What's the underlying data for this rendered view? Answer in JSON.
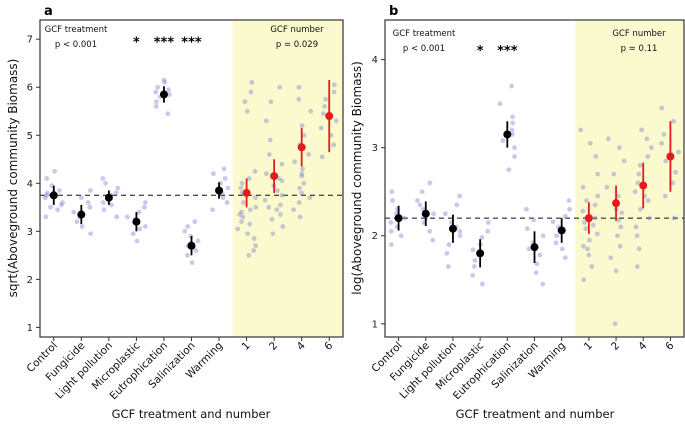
{
  "colors": {
    "treatment_mean": "#000000",
    "number_mean": "#e41a1c",
    "scatter": "#7f7fd0",
    "highlight_band": "#f8f8b4",
    "dashed_line": "#111111",
    "panel_border": "#333333"
  },
  "chart_data": [
    {
      "type": "scatter",
      "panel_label": "a",
      "ylabel": "sqrt(Aboveground community Biomass)",
      "xlabel": "GCF treatment and number",
      "ylim": [
        0.8,
        7.4
      ],
      "yticks": [
        1,
        2,
        3,
        4,
        5,
        6,
        7
      ],
      "categories": [
        "Control",
        "Fungicide",
        "Light pollution",
        "Microplastic",
        "Eutrophication",
        "Salinization",
        "Warming",
        "1",
        "2",
        "4",
        "6"
      ],
      "group_split_index": 7,
      "dashed_line_y": 3.75,
      "annotations": {
        "treatment": {
          "title": "GCF treatment",
          "p": "p < 0.001"
        },
        "number": {
          "title": "GCF number",
          "p": "p = 0.029"
        }
      },
      "stars": [
        {
          "category": "Microplastic",
          "label": "*"
        },
        {
          "category": "Eutrophication",
          "label": "***"
        },
        {
          "category": "Salinization",
          "label": "***"
        }
      ],
      "stars_y": 6.85,
      "means": [
        {
          "category": "Control",
          "mean": 3.75,
          "lo": 3.55,
          "hi": 3.95,
          "group": "treatment"
        },
        {
          "category": "Fungicide",
          "mean": 3.35,
          "lo": 3.15,
          "hi": 3.55,
          "group": "treatment"
        },
        {
          "category": "Light pollution",
          "mean": 3.7,
          "lo": 3.55,
          "hi": 3.85,
          "group": "treatment"
        },
        {
          "category": "Microplastic",
          "mean": 3.2,
          "lo": 3.0,
          "hi": 3.4,
          "group": "treatment"
        },
        {
          "category": "Eutrophication",
          "mean": 5.85,
          "lo": 5.68,
          "hi": 6.02,
          "group": "treatment"
        },
        {
          "category": "Salinization",
          "mean": 2.7,
          "lo": 2.5,
          "hi": 2.9,
          "group": "treatment"
        },
        {
          "category": "Warming",
          "mean": 3.85,
          "lo": 3.68,
          "hi": 4.02,
          "group": "treatment"
        },
        {
          "category": "1",
          "mean": 3.8,
          "lo": 3.5,
          "hi": 4.1,
          "group": "number"
        },
        {
          "category": "2",
          "mean": 4.15,
          "lo": 3.8,
          "hi": 4.5,
          "group": "number"
        },
        {
          "category": "4",
          "mean": 4.75,
          "lo": 4.35,
          "hi": 5.15,
          "group": "number"
        },
        {
          "category": "6",
          "mean": 5.4,
          "lo": 4.65,
          "hi": 6.15,
          "group": "number"
        }
      ],
      "scatter_points": [
        [
          3.3,
          3.45,
          3.55,
          3.6,
          3.7,
          3.75,
          3.8,
          3.85,
          3.95,
          4.1,
          4.25,
          3.5
        ],
        [
          2.95,
          3.1,
          3.2,
          3.3,
          3.35,
          3.4,
          3.5,
          3.6,
          3.7,
          3.85
        ],
        [
          3.3,
          3.45,
          3.55,
          3.6,
          3.7,
          3.75,
          3.8,
          3.9,
          4.0,
          4.1
        ],
        [
          2.8,
          2.95,
          3.05,
          3.1,
          3.2,
          3.25,
          3.3,
          3.4,
          3.5,
          3.6
        ],
        [
          5.45,
          5.6,
          5.7,
          5.8,
          5.85,
          5.9,
          5.95,
          6.0,
          6.1,
          6.15
        ],
        [
          2.35,
          2.5,
          2.6,
          2.7,
          2.75,
          2.8,
          2.9,
          3.0,
          3.1,
          3.2
        ],
        [
          3.45,
          3.6,
          3.7,
          3.8,
          3.85,
          3.9,
          4.0,
          4.1,
          4.2,
          4.3
        ],
        [
          2.5,
          2.7,
          2.85,
          2.95,
          3.05,
          3.15,
          3.2,
          3.3,
          3.35,
          3.45,
          3.5,
          3.6,
          3.7,
          3.8,
          3.9,
          4.0,
          4.1,
          4.25,
          5.5,
          5.7,
          5.9,
          6.1,
          3.4,
          2.6
        ],
        [
          2.95,
          3.1,
          3.25,
          3.35,
          3.45,
          3.55,
          3.65,
          3.75,
          3.85,
          3.95,
          4.05,
          4.2,
          4.4,
          4.6,
          4.9,
          5.3,
          5.7,
          6.0,
          3.5,
          4.1
        ],
        [
          3.3,
          3.45,
          3.6,
          3.7,
          3.8,
          3.9,
          4.0,
          4.15,
          4.3,
          4.45,
          4.6,
          4.8,
          5.0,
          5.2,
          5.5,
          5.75,
          6.0,
          4.2
        ],
        [
          4.55,
          4.8,
          5.0,
          5.15,
          5.3,
          5.45,
          5.6,
          5.75,
          5.9,
          6.05
        ]
      ]
    },
    {
      "type": "scatter",
      "panel_label": "b",
      "ylabel": "log(Aboveground community Biomass)",
      "xlabel": "GCF treatment and number",
      "ylim": [
        0.85,
        4.45
      ],
      "yticks": [
        1,
        2,
        3,
        4
      ],
      "categories": [
        "Control",
        "Fungicide",
        "Light pollution",
        "Microplastic",
        "Eutrophication",
        "Salinization",
        "Warming",
        "1",
        "2",
        "4",
        "6"
      ],
      "group_split_index": 7,
      "dashed_line_y": 2.2,
      "annotations": {
        "treatment": {
          "title": "GCF treatment",
          "p": "p < 0.001"
        },
        "number": {
          "title": "GCF number",
          "p": "p = 0.11"
        }
      },
      "stars": [
        {
          "category": "Microplastic",
          "label": "*"
        },
        {
          "category": "Eutrophication",
          "label": "***"
        }
      ],
      "stars_y": 4.05,
      "means": [
        {
          "category": "Control",
          "mean": 2.2,
          "lo": 2.06,
          "hi": 2.34,
          "group": "treatment"
        },
        {
          "category": "Fungicide",
          "mean": 2.25,
          "lo": 2.11,
          "hi": 2.39,
          "group": "treatment"
        },
        {
          "category": "Light pollution",
          "mean": 2.08,
          "lo": 1.92,
          "hi": 2.24,
          "group": "treatment"
        },
        {
          "category": "Microplastic",
          "mean": 1.8,
          "lo": 1.64,
          "hi": 1.96,
          "group": "treatment"
        },
        {
          "category": "Eutrophication",
          "mean": 3.15,
          "lo": 3.0,
          "hi": 3.3,
          "group": "treatment"
        },
        {
          "category": "Salinization",
          "mean": 1.87,
          "lo": 1.69,
          "hi": 2.05,
          "group": "treatment"
        },
        {
          "category": "Warming",
          "mean": 2.06,
          "lo": 1.92,
          "hi": 2.2,
          "group": "treatment"
        },
        {
          "category": "1",
          "mean": 2.2,
          "lo": 2.02,
          "hi": 2.38,
          "group": "number"
        },
        {
          "category": "2",
          "mean": 2.37,
          "lo": 2.17,
          "hi": 2.57,
          "group": "number"
        },
        {
          "category": "4",
          "mean": 2.57,
          "lo": 2.31,
          "hi": 2.83,
          "group": "number"
        },
        {
          "category": "6",
          "mean": 2.9,
          "lo": 2.5,
          "hi": 3.3,
          "group": "number"
        }
      ],
      "scatter_points": [
        [
          1.9,
          2.0,
          2.05,
          2.1,
          2.15,
          2.2,
          2.25,
          2.3,
          2.4,
          2.5
        ],
        [
          1.95,
          2.05,
          2.15,
          2.2,
          2.25,
          2.3,
          2.35,
          2.4,
          2.5,
          2.6
        ],
        [
          1.65,
          1.8,
          1.9,
          2.0,
          2.05,
          2.1,
          2.15,
          2.25,
          2.35,
          2.45
        ],
        [
          1.45,
          1.55,
          1.65,
          1.72,
          1.78,
          1.84,
          1.9,
          1.98,
          2.05,
          2.15
        ],
        [
          2.75,
          2.9,
          3.0,
          3.08,
          3.15,
          3.2,
          3.28,
          3.35,
          3.5,
          3.7
        ],
        [
          1.45,
          1.58,
          1.68,
          1.78,
          1.85,
          1.92,
          2.0,
          2.08,
          2.18,
          2.3
        ],
        [
          1.75,
          1.85,
          1.92,
          2.0,
          2.05,
          2.1,
          2.16,
          2.22,
          2.3,
          2.4
        ],
        [
          1.5,
          1.65,
          1.78,
          1.88,
          1.95,
          2.02,
          2.08,
          2.15,
          2.2,
          2.28,
          2.35,
          2.45,
          2.55,
          2.7,
          2.9,
          3.05,
          3.2,
          2.12,
          1.85,
          2.4
        ],
        [
          1.0,
          1.6,
          1.75,
          1.88,
          2.0,
          2.1,
          2.18,
          2.26,
          2.35,
          2.45,
          2.55,
          2.7,
          2.85,
          3.0,
          3.1,
          2.3
        ],
        [
          1.65,
          1.85,
          2.0,
          2.1,
          2.2,
          2.3,
          2.4,
          2.5,
          2.6,
          2.7,
          2.8,
          2.9,
          3.0,
          3.1,
          3.2,
          2.45
        ],
        [
          2.2,
          2.45,
          2.6,
          2.72,
          2.85,
          2.95,
          3.05,
          3.15,
          3.3,
          3.45
        ]
      ]
    }
  ]
}
